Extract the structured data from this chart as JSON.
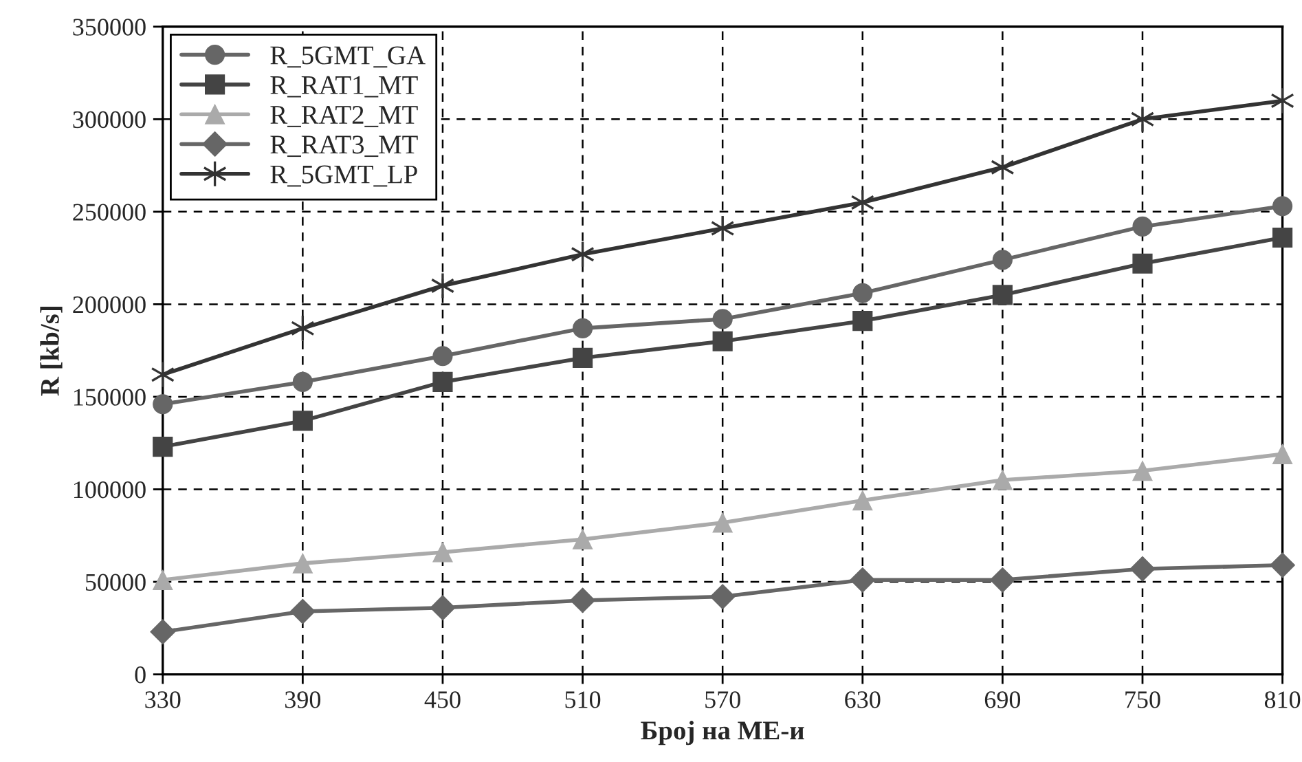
{
  "chart_data": {
    "type": "line",
    "xlabel": "Број на МЕ-и",
    "ylabel": "R [kb/s]",
    "x": [
      330,
      390,
      450,
      510,
      570,
      630,
      690,
      750,
      810
    ],
    "xlim": [
      330,
      810
    ],
    "xticks": [
      330,
      390,
      450,
      510,
      570,
      630,
      690,
      750,
      810
    ],
    "ylim": [
      0,
      350000
    ],
    "yticks": [
      0,
      50000,
      100000,
      150000,
      200000,
      250000,
      300000,
      350000
    ],
    "grid": true,
    "legend": "top left",
    "line_style": "solid",
    "series": [
      {
        "name": "R_5GMT_GA",
        "color": "#666666",
        "marker": "circle",
        "values": [
          146000,
          158000,
          172000,
          187000,
          192000,
          206000,
          224000,
          242000,
          253000
        ]
      },
      {
        "name": "R_RAT1_MT",
        "color": "#444444",
        "marker": "square",
        "values": [
          123000,
          137000,
          158000,
          171000,
          180000,
          191000,
          205000,
          222000,
          236000
        ]
      },
      {
        "name": "R_RAT2_MT",
        "color": "#aaaaaa",
        "marker": "triangle",
        "values": [
          51000,
          60000,
          66000,
          73000,
          82000,
          94000,
          105000,
          110000,
          119000
        ]
      },
      {
        "name": "R_RAT3_MT",
        "color": "#666666",
        "marker": "diamond",
        "values": [
          23000,
          34000,
          36000,
          40000,
          42000,
          51000,
          51000,
          57000,
          59000
        ]
      },
      {
        "name": "R_5GMT_LP",
        "color": "#333333",
        "marker": "cross",
        "values": [
          162000,
          187000,
          210000,
          227000,
          241000,
          255000,
          274000,
          300000,
          310000
        ]
      }
    ]
  }
}
